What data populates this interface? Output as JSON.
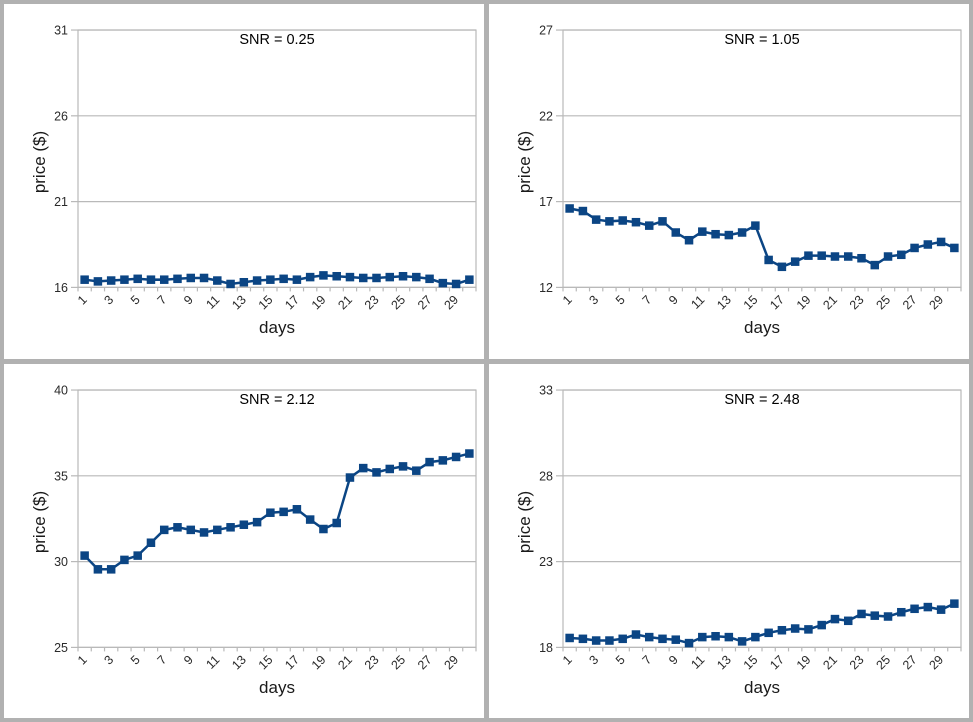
{
  "frame": {
    "border_color": "#b1b1b1",
    "panel_background": "#ffffff"
  },
  "style": {
    "series_color": "#0b4584",
    "grid_color": "#b9b9b9",
    "tick_text_color": "#2a2a2a",
    "tick_font_px": 12.5,
    "marker": "square",
    "marker_size": 8.5,
    "line_width": 2.5
  },
  "chart_data": [
    {
      "type": "line",
      "title": "SNR = 0.25",
      "xlabel": "days",
      "ylabel": "price ($)",
      "x": [
        1,
        2,
        3,
        4,
        5,
        6,
        7,
        8,
        9,
        10,
        11,
        12,
        13,
        14,
        15,
        16,
        17,
        18,
        19,
        20,
        21,
        22,
        23,
        24,
        25,
        26,
        27,
        28,
        29,
        30
      ],
      "values": [
        16.45,
        16.35,
        16.4,
        16.45,
        16.5,
        16.45,
        16.45,
        16.5,
        16.55,
        16.55,
        16.4,
        16.2,
        16.3,
        16.4,
        16.45,
        16.5,
        16.45,
        16.6,
        16.7,
        16.65,
        16.6,
        16.55,
        16.55,
        16.6,
        16.65,
        16.6,
        16.5,
        16.25,
        16.2,
        16.45
      ],
      "ylim": [
        16,
        31
      ],
      "yticks": [
        16,
        21,
        26,
        31
      ],
      "xtick_labels": [
        1,
        3,
        5,
        7,
        9,
        11,
        13,
        15,
        17,
        19,
        21,
        23,
        25,
        27,
        29
      ],
      "grid": true,
      "legend": "none"
    },
    {
      "type": "line",
      "title": "SNR = 1.05",
      "xlabel": "days",
      "ylabel": "price ($)",
      "x": [
        1,
        2,
        3,
        4,
        5,
        6,
        7,
        8,
        9,
        10,
        11,
        12,
        13,
        14,
        15,
        16,
        17,
        18,
        19,
        20,
        21,
        22,
        23,
        24,
        25,
        26,
        27,
        28,
        29,
        30
      ],
      "values": [
        16.6,
        16.45,
        15.95,
        15.85,
        15.9,
        15.8,
        15.6,
        15.85,
        15.2,
        14.75,
        15.25,
        15.1,
        15.05,
        15.2,
        15.6,
        13.6,
        13.2,
        13.5,
        13.85,
        13.85,
        13.8,
        13.8,
        13.7,
        13.3,
        13.8,
        13.9,
        14.3,
        14.5,
        14.65,
        14.3
      ],
      "ylim": [
        12,
        27
      ],
      "yticks": [
        12,
        17,
        22,
        27
      ],
      "xtick_labels": [
        1,
        3,
        5,
        7,
        9,
        11,
        13,
        15,
        17,
        19,
        21,
        23,
        25,
        27,
        29
      ],
      "grid": true,
      "legend": "none"
    },
    {
      "type": "line",
      "title": "SNR = 2.12",
      "xlabel": "days",
      "ylabel": "price ($)",
      "x": [
        1,
        2,
        3,
        4,
        5,
        6,
        7,
        8,
        9,
        10,
        11,
        12,
        13,
        14,
        15,
        16,
        17,
        18,
        19,
        20,
        21,
        22,
        23,
        24,
        25,
        26,
        27,
        28,
        29,
        30
      ],
      "values": [
        30.35,
        29.55,
        29.55,
        30.1,
        30.35,
        31.1,
        31.85,
        32.0,
        31.85,
        31.7,
        31.85,
        32.0,
        32.15,
        32.3,
        32.85,
        32.9,
        33.05,
        32.45,
        31.9,
        32.25,
        34.9,
        35.45,
        35.2,
        35.4,
        35.55,
        35.3,
        35.8,
        35.9,
        36.1,
        36.3
      ],
      "ylim": [
        25,
        40
      ],
      "yticks": [
        25,
        30,
        35,
        40
      ],
      "xtick_labels": [
        1,
        3,
        5,
        7,
        9,
        11,
        13,
        15,
        17,
        19,
        21,
        23,
        25,
        27,
        29
      ],
      "grid": true,
      "legend": "none"
    },
    {
      "type": "line",
      "title": "SNR = 2.48",
      "xlabel": "days",
      "ylabel": "price ($)",
      "x": [
        1,
        2,
        3,
        4,
        5,
        6,
        7,
        8,
        9,
        10,
        11,
        12,
        13,
        14,
        15,
        16,
        17,
        18,
        19,
        20,
        21,
        22,
        23,
        24,
        25,
        26,
        27,
        28,
        29,
        30
      ],
      "values": [
        18.55,
        18.5,
        18.4,
        18.4,
        18.5,
        18.75,
        18.6,
        18.5,
        18.45,
        18.25,
        18.6,
        18.65,
        18.6,
        18.35,
        18.6,
        18.85,
        19.0,
        19.1,
        19.05,
        19.3,
        19.65,
        19.55,
        19.95,
        19.85,
        19.8,
        20.05,
        20.25,
        20.35,
        20.2,
        20.55
      ],
      "ylim": [
        18,
        33
      ],
      "yticks": [
        18,
        23,
        28,
        33
      ],
      "xtick_labels": [
        1,
        3,
        5,
        7,
        9,
        11,
        13,
        15,
        17,
        19,
        21,
        23,
        25,
        27,
        29
      ],
      "grid": true,
      "legend": "none"
    }
  ]
}
